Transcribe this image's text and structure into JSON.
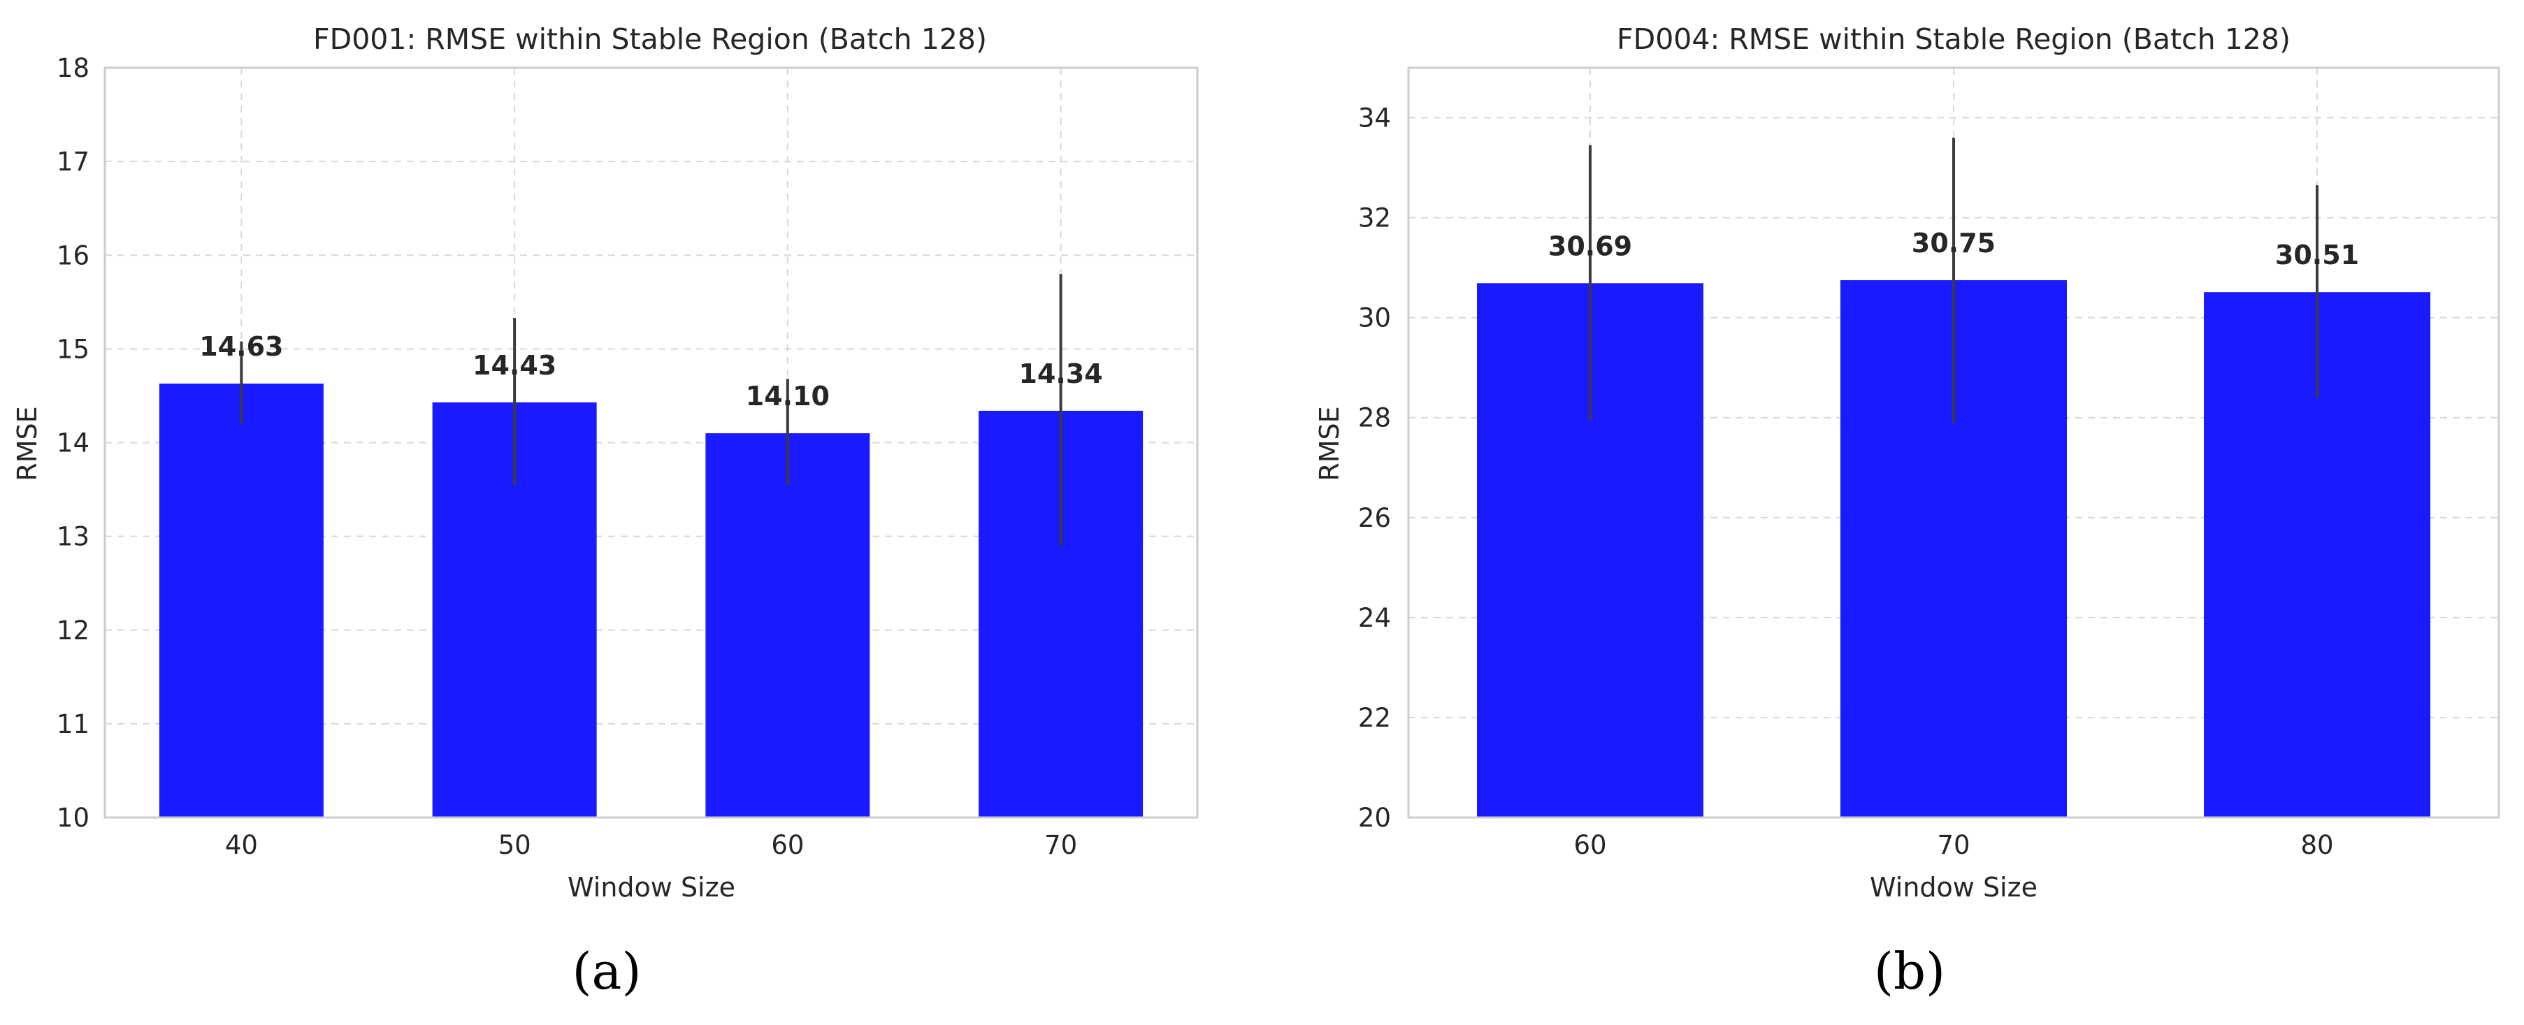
{
  "colors": {
    "bar": "#1a1aff",
    "error_bar": "#3b3b3b",
    "grid": "#d9d9d9",
    "frame": "#cccccc"
  },
  "chart_data": [
    {
      "type": "bar",
      "panel_label": "(a)",
      "title": "FD001: RMSE within Stable Region (Batch 128)",
      "xlabel": "Window Size",
      "ylabel": "RMSE",
      "categories": [
        "40",
        "50",
        "60",
        "70"
      ],
      "values": [
        14.63,
        14.43,
        14.1,
        14.34
      ],
      "value_labels": [
        "14.63",
        "14.43",
        "14.10",
        "14.34"
      ],
      "error_bars": [
        [
          14.2,
          15.08
        ],
        [
          13.55,
          15.33
        ],
        [
          13.55,
          14.68
        ],
        [
          12.9,
          15.8
        ]
      ],
      "ylim": [
        10,
        18
      ],
      "yticks": [
        10,
        11,
        12,
        13,
        14,
        15,
        16,
        17,
        18
      ],
      "ytick_labels": [
        "10",
        "11",
        "12",
        "13",
        "14",
        "15",
        "16",
        "17",
        "18"
      ],
      "grid": true
    },
    {
      "type": "bar",
      "panel_label": "(b)",
      "title": "FD004: RMSE within Stable Region (Batch 128)",
      "xlabel": "Window Size",
      "ylabel": "RMSE",
      "categories": [
        "60",
        "70",
        "80"
      ],
      "values": [
        30.69,
        30.75,
        30.51
      ],
      "value_labels": [
        "30.69",
        "30.75",
        "30.51"
      ],
      "error_bars": [
        [
          27.95,
          33.45
        ],
        [
          27.9,
          33.6
        ],
        [
          28.4,
          32.65
        ]
      ],
      "ylim": [
        20,
        35
      ],
      "yticks": [
        20,
        22,
        24,
        26,
        28,
        30,
        32,
        34
      ],
      "ytick_labels": [
        "20",
        "22",
        "24",
        "26",
        "28",
        "30",
        "32",
        "34"
      ],
      "grid": true
    }
  ]
}
